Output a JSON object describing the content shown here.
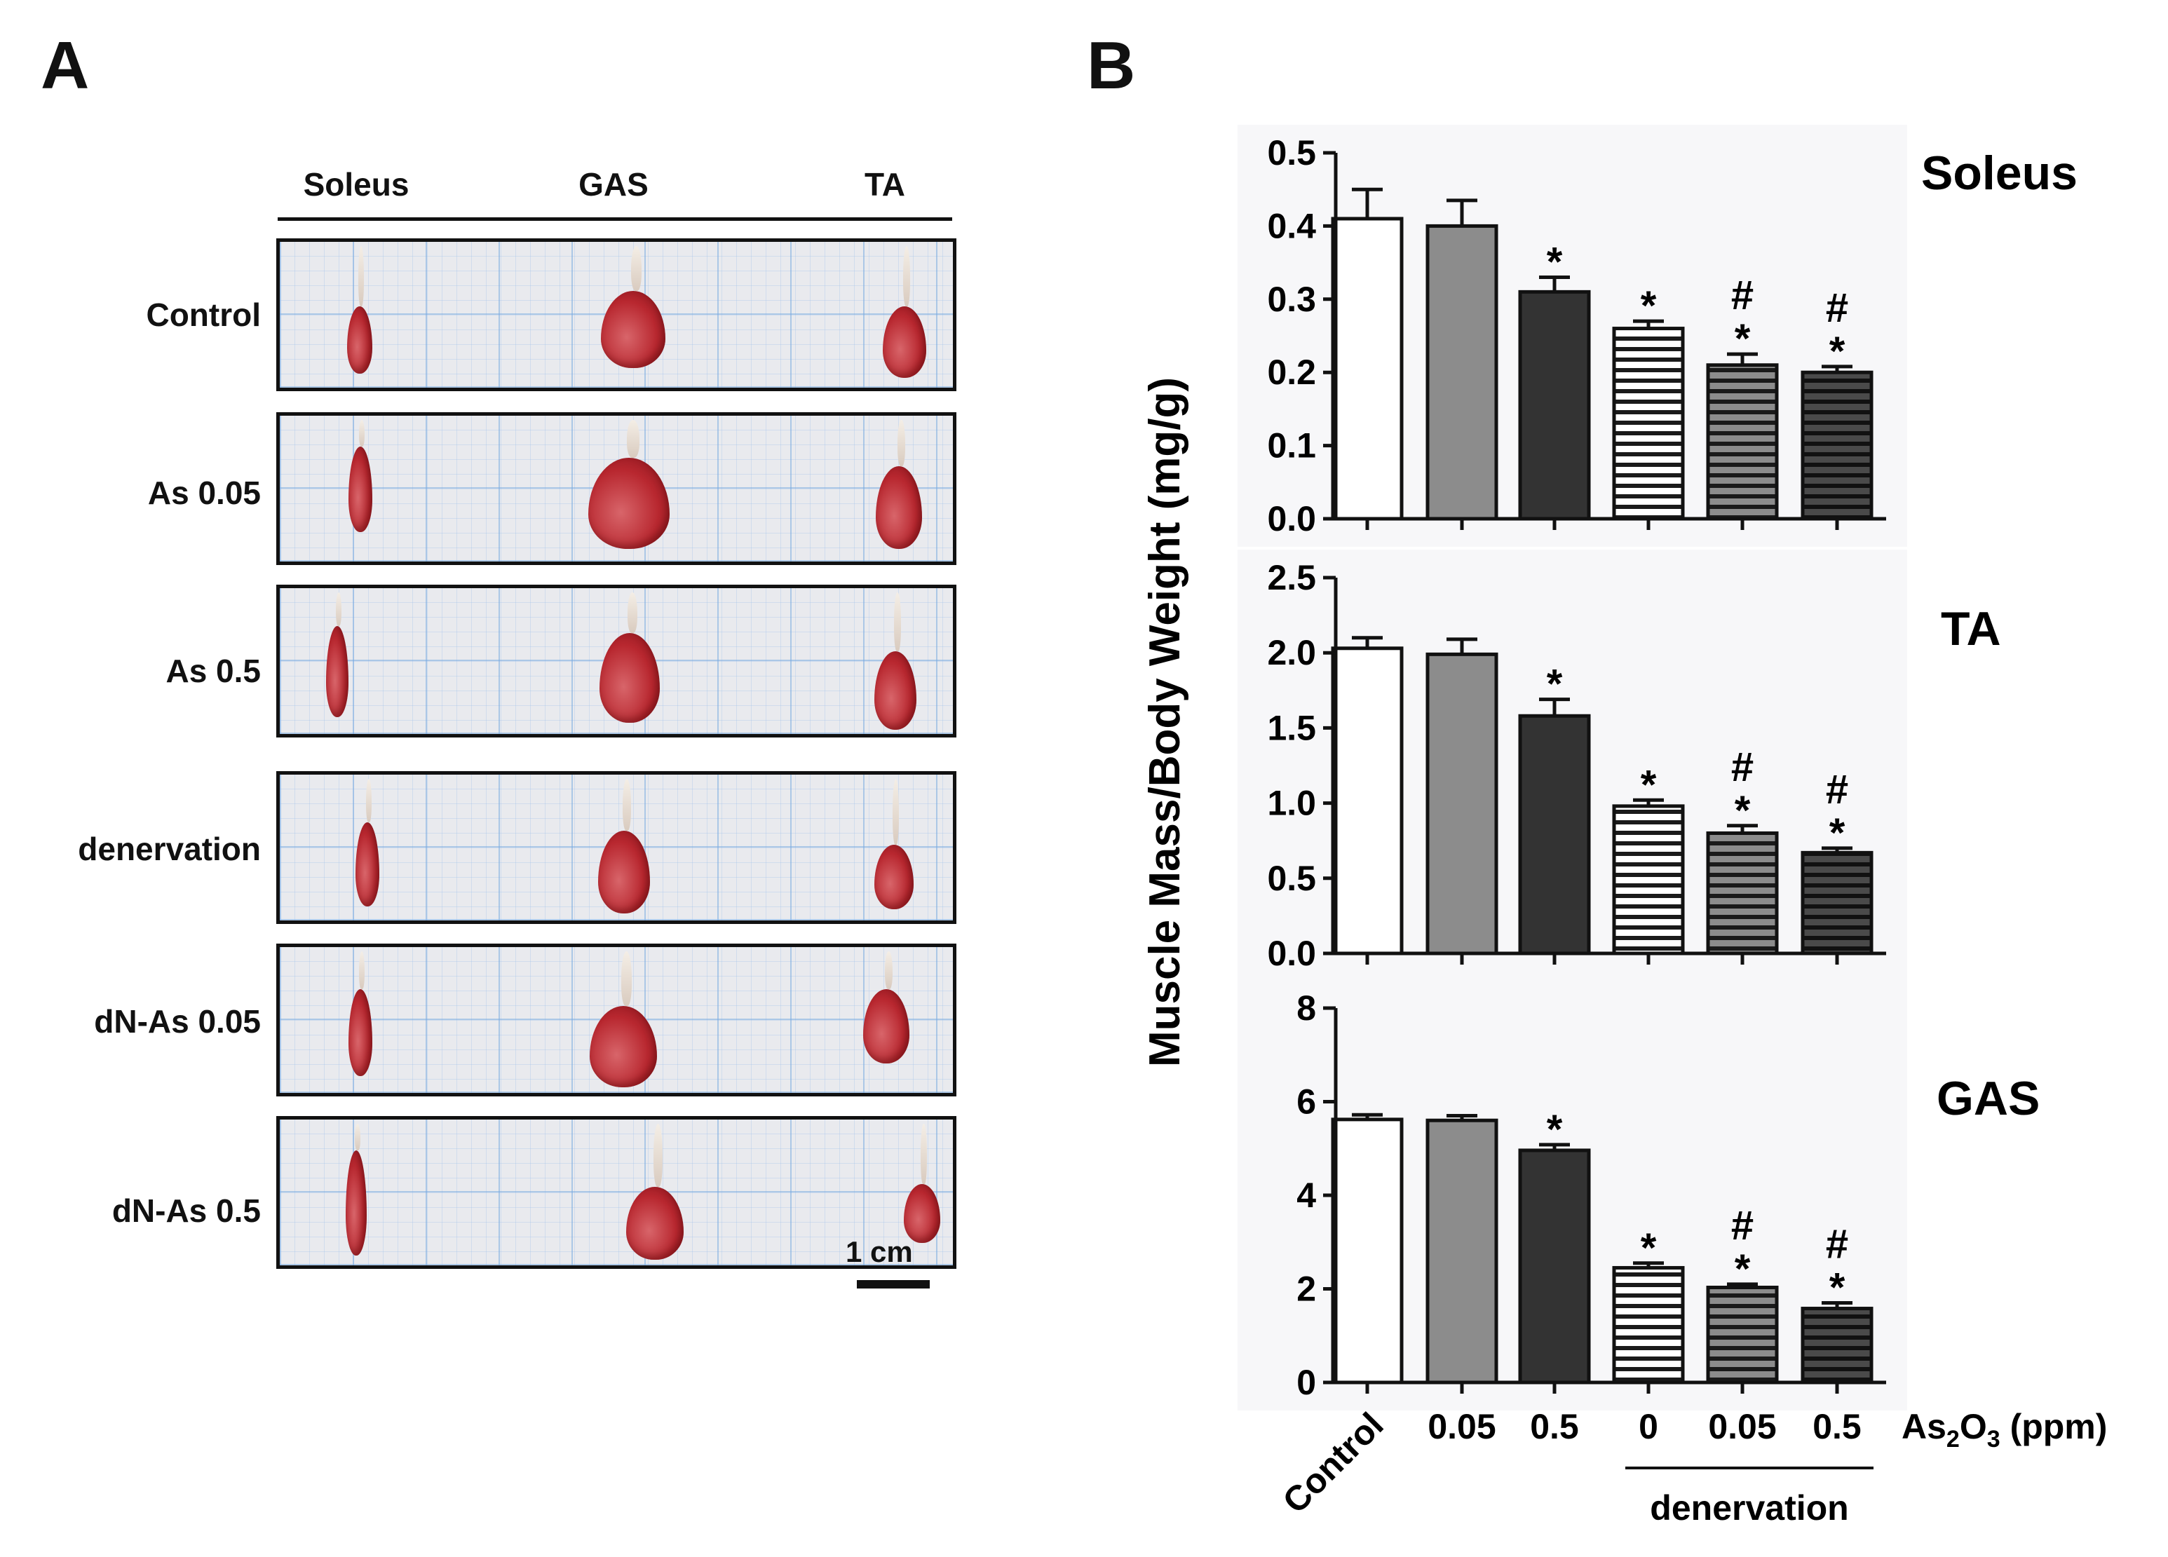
{
  "panel_a": {
    "letter": "A",
    "columns": [
      "Soleus",
      "GAS",
      "TA"
    ],
    "rows": [
      "Control",
      "As 0.05",
      "As 0.5",
      "denervation",
      "dN-As 0.05",
      "dN-As 0.5"
    ],
    "scale_bar": "1 cm"
  },
  "panel_b": {
    "letter": "B",
    "group_label": "denervation",
    "x_axis_unit": "As2O3 (ppm)",
    "rotated_category": "Control"
  },
  "colors": {
    "tissue": "#b8272f",
    "tissue_light": "#d8656a",
    "bar_white": "#ffffff",
    "bar_gray": "#8c8c8c",
    "bar_dark": "#333333"
  },
  "chart_data": [
    {
      "type": "bar",
      "title": "Soleus",
      "ylabel": "Muscle Mass/Body Weight (mg/g)",
      "categories": [
        "Control",
        "0.05",
        "0.5",
        "0",
        "0.05",
        "0.5"
      ],
      "values": [
        0.41,
        0.4,
        0.31,
        0.26,
        0.21,
        0.2
      ],
      "errors": [
        0.04,
        0.035,
        0.02,
        0.01,
        0.015,
        0.008
      ],
      "annotations": [
        "",
        "",
        "*",
        "*",
        "#\n*",
        "#\n*"
      ],
      "fills": [
        "white",
        "gray",
        "dark",
        "stripe-white",
        "stripe-gray",
        "stripe-dark"
      ],
      "ylim": [
        0,
        0.5
      ],
      "yticks": [
        "0.0",
        "0.1",
        "0.2",
        "0.3",
        "0.4",
        "0.5"
      ]
    },
    {
      "type": "bar",
      "title": "TA",
      "ylabel": "Muscle Mass/Body Weight (mg/g)",
      "categories": [
        "Control",
        "0.05",
        "0.5",
        "0",
        "0.05",
        "0.5"
      ],
      "values": [
        2.03,
        1.99,
        1.58,
        0.98,
        0.8,
        0.67
      ],
      "errors": [
        0.07,
        0.1,
        0.11,
        0.04,
        0.05,
        0.03
      ],
      "annotations": [
        "",
        "",
        "*",
        "*",
        "#\n*",
        "#\n*"
      ],
      "fills": [
        "white",
        "gray",
        "dark",
        "stripe-white",
        "stripe-gray",
        "stripe-dark"
      ],
      "ylim": [
        0,
        2.5
      ],
      "yticks": [
        "0.0",
        "0.5",
        "1.0",
        "1.5",
        "2.0",
        "2.5"
      ]
    },
    {
      "type": "bar",
      "title": "GAS",
      "ylabel": "Muscle Mass/Body Weight (mg/g)",
      "categories": [
        "Control",
        "0.05",
        "0.5",
        "0",
        "0.05",
        "0.5"
      ],
      "values": [
        5.62,
        5.6,
        4.96,
        2.45,
        2.03,
        1.58
      ],
      "errors": [
        0.1,
        0.1,
        0.12,
        0.1,
        0.07,
        0.12
      ],
      "annotations": [
        "",
        "",
        "*",
        "*",
        "#\n*",
        "#\n*"
      ],
      "fills": [
        "white",
        "gray",
        "dark",
        "stripe-white",
        "stripe-gray",
        "stripe-dark"
      ],
      "ylim": [
        0,
        8
      ],
      "yticks": [
        "0",
        "2",
        "4",
        "6",
        "8"
      ]
    }
  ]
}
